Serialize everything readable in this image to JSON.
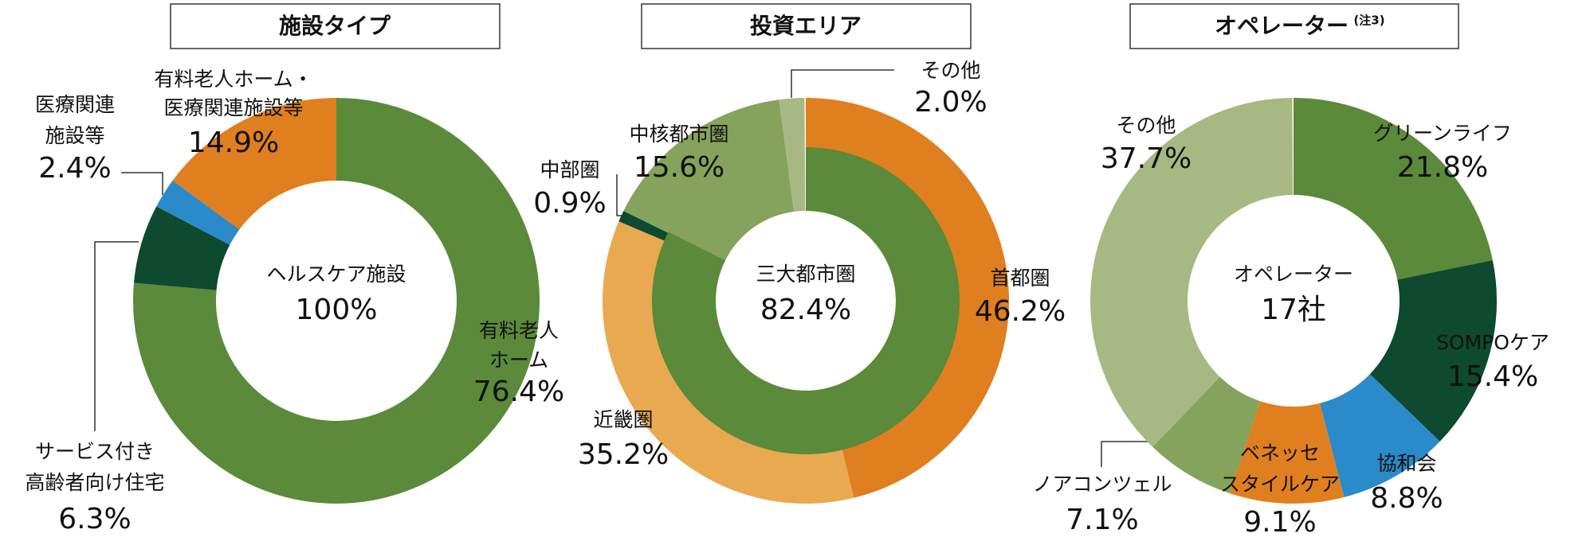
{
  "chart_data": [
    {
      "type": "donut",
      "title": "施設タイプ",
      "center_label": "ヘルスケア施設",
      "center_text": "100%",
      "categories": [
        "有料老人\nホーム",
        "サービス付き\n高齢者向け住宅",
        "医療関連\n施設等",
        "有料老人ホーム・\n医療関連施設等"
      ],
      "values": [
        76.4,
        6.3,
        2.4,
        14.9
      ],
      "value_labels": [
        "76.4%",
        "6.3%",
        "2.4%",
        "14.9%"
      ],
      "colors": [
        "#5a8a3a",
        "#0d4a2f",
        "#2b8ac9",
        "#e07f1f"
      ]
    },
    {
      "type": "donut",
      "title": "投資エリア",
      "categories": [
        "首都圏",
        "近畿圏",
        "中部圏",
        "中核都市圏",
        "その他"
      ],
      "values": [
        46.2,
        35.2,
        0.9,
        15.6,
        2.0
      ],
      "value_labels": [
        "46.2%",
        "35.2%",
        "0.9%",
        "15.6%",
        "2.0%"
      ],
      "colors": [
        "#e07f1f",
        "#e8a951",
        "#0d4a2f",
        "#85a35c",
        "#a8b882"
      ],
      "inner": {
        "name": "三大都市圏",
        "values": [
          82.4
        ],
        "value_labels": [
          "82.4%"
        ],
        "color": "#5a8a3a"
      }
    },
    {
      "type": "donut",
      "title": "オペレーター",
      "title_note": "(注3)",
      "center_label": "オペレーター",
      "center_text": "17社",
      "categories": [
        "グリーンライフ",
        "SOMPOケア",
        "協和会",
        "ベネッセ\nスタイルケア",
        "ノアコンツェル",
        "その他"
      ],
      "values": [
        21.8,
        15.4,
        8.8,
        9.1,
        7.1,
        37.7
      ],
      "value_labels": [
        "21.8%",
        "15.4%",
        "8.8%",
        "9.1%",
        "7.1%",
        "37.7%"
      ],
      "colors": [
        "#5a8a3a",
        "#0d4a2f",
        "#2b8ac9",
        "#e07f1f",
        "#85a35c",
        "#a8b882"
      ]
    }
  ]
}
